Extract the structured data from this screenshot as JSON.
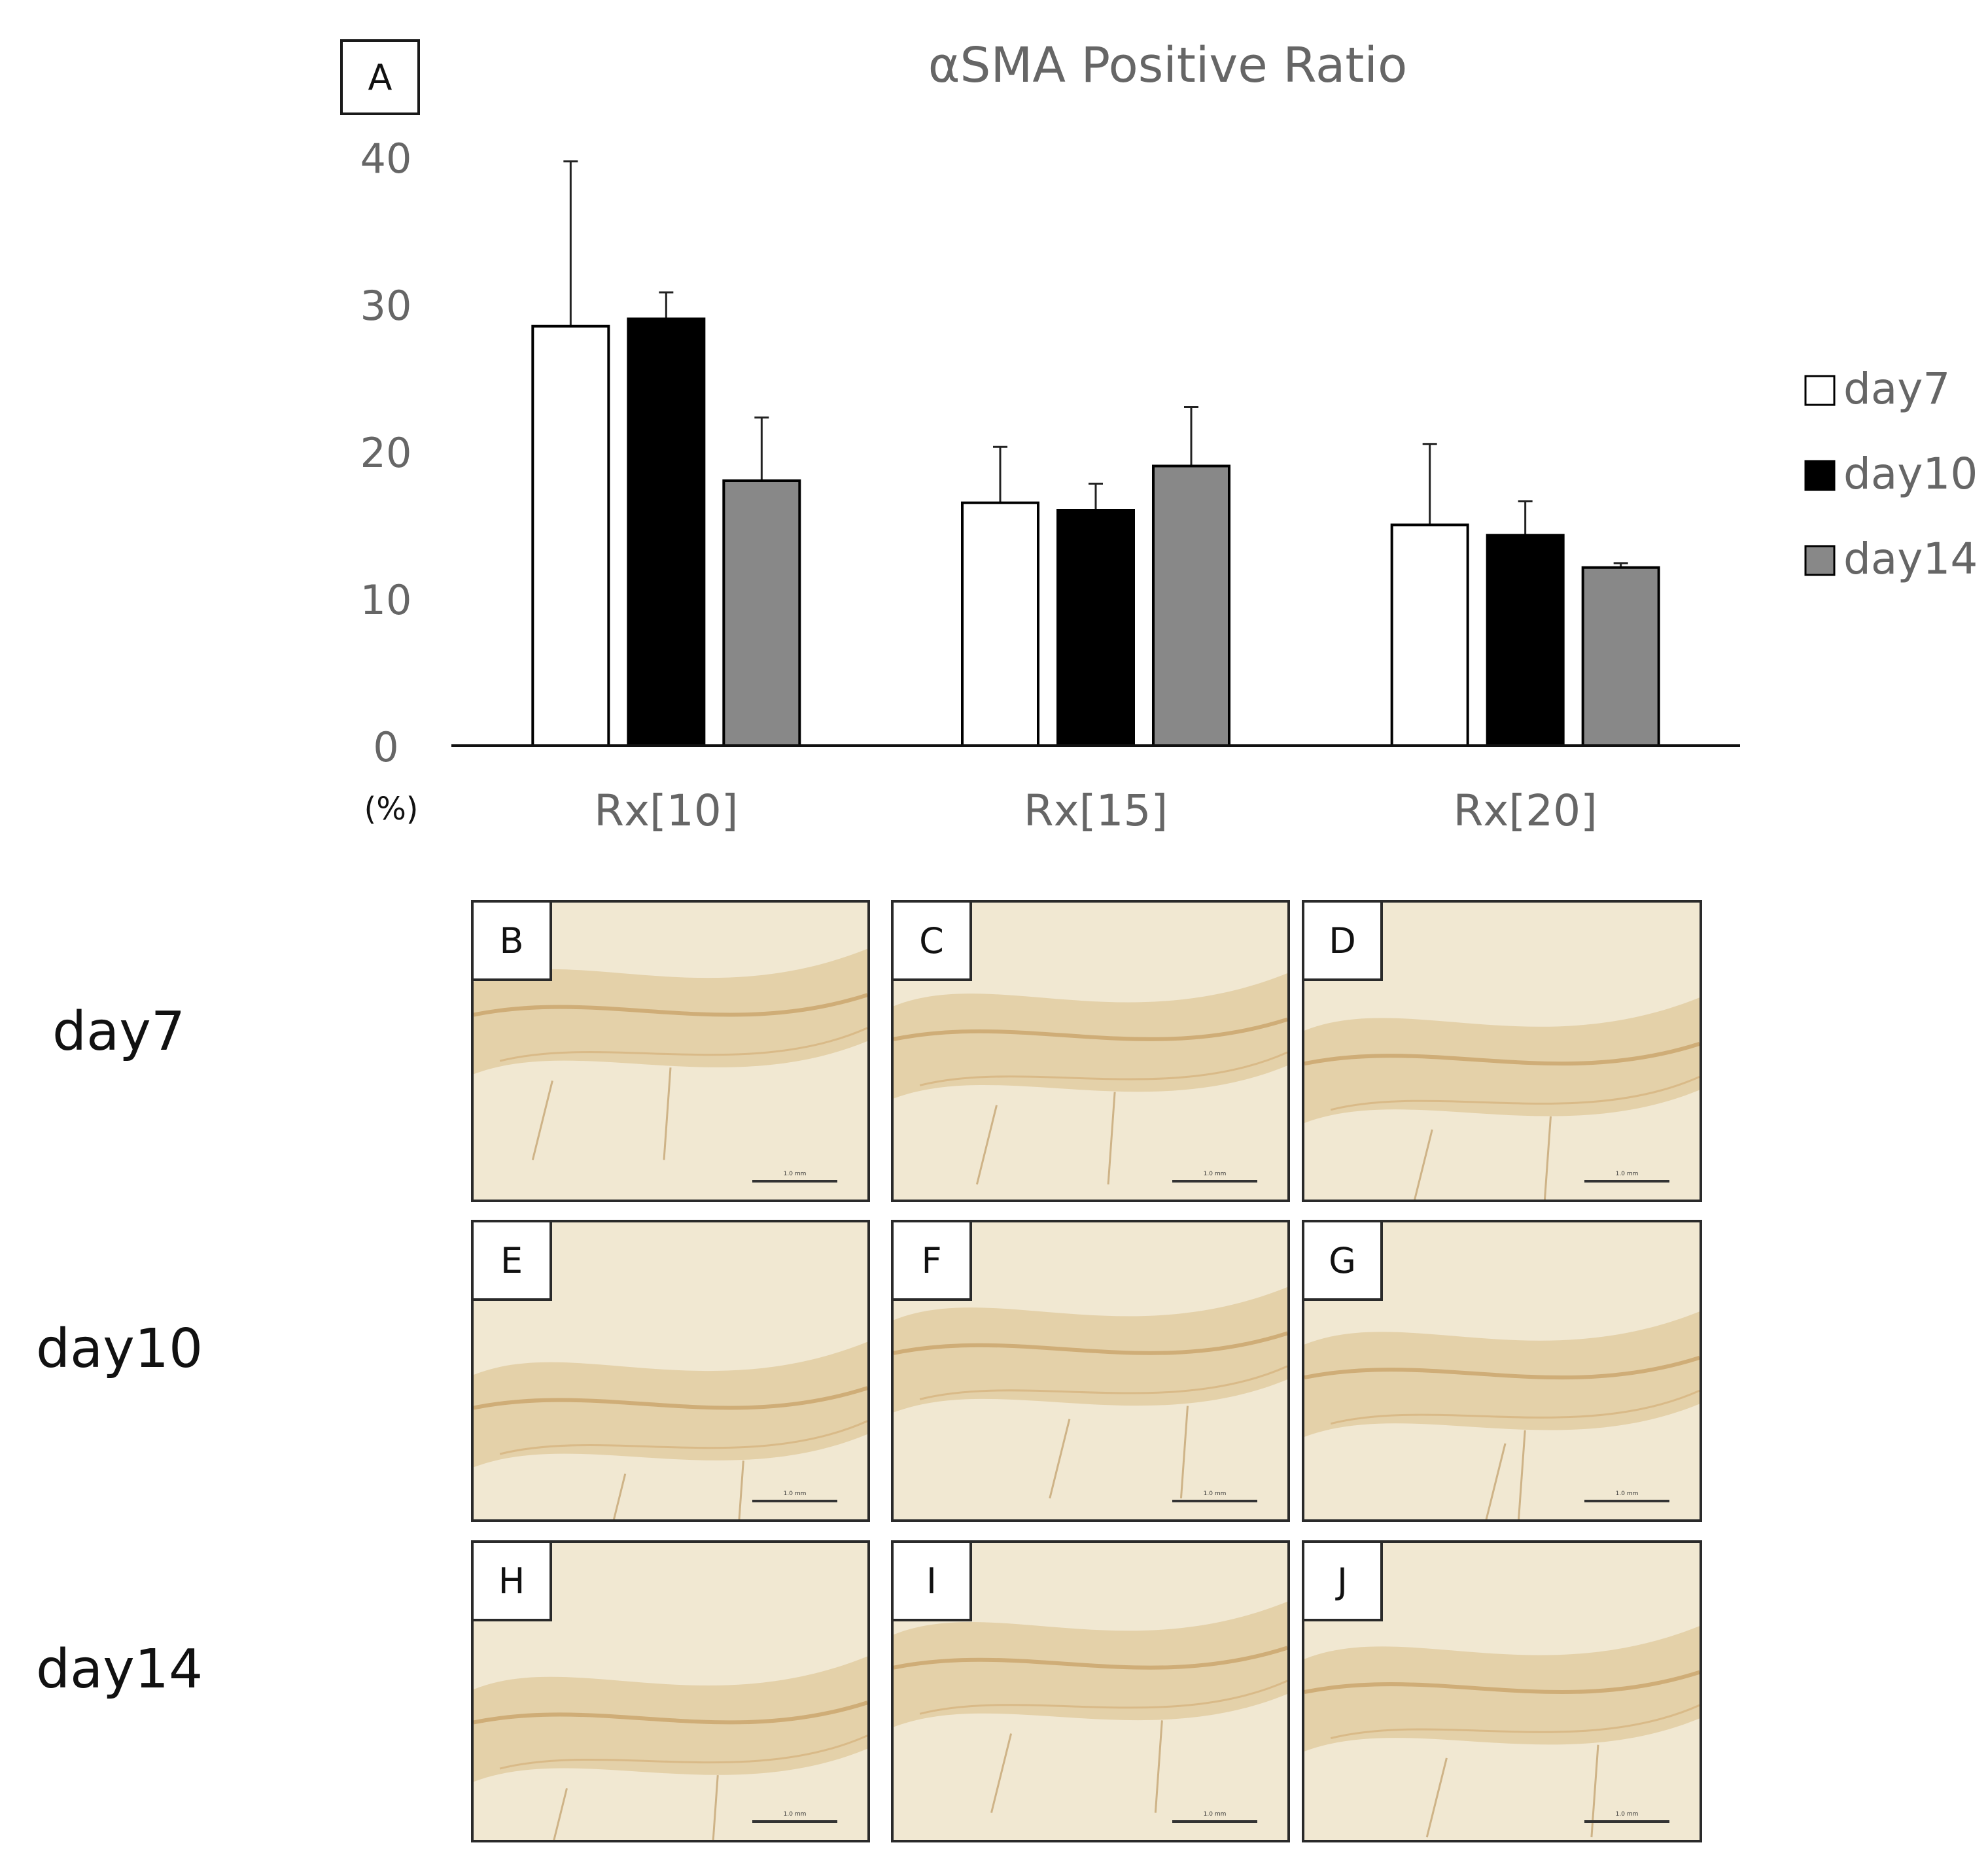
{
  "panel_a_label": "A",
  "chart_data": {
    "type": "bar",
    "title": "αSMA Positive Ratio",
    "ylabel": "(%)",
    "xlabel": "",
    "ylim": [
      0,
      40
    ],
    "yticks": [
      0,
      10,
      20,
      30,
      40
    ],
    "categories": [
      "Rx[10]",
      "Rx[15]",
      "Rx[20]"
    ],
    "series": [
      {
        "name": "day7",
        "color": "#ffffff",
        "values": [
          28.5,
          16.5,
          15.0
        ],
        "errors": [
          11.2,
          3.8,
          5.5
        ]
      },
      {
        "name": "day10",
        "color": "#000000",
        "values": [
          29.0,
          16.0,
          14.3
        ],
        "errors": [
          1.8,
          1.8,
          2.3
        ]
      },
      {
        "name": "day14",
        "color": "#888888",
        "values": [
          18.0,
          19.0,
          12.1
        ],
        "errors": [
          4.3,
          4.0,
          0.3
        ]
      }
    ],
    "legend_position": "right",
    "grid": false
  },
  "micrographs": {
    "rows": [
      "day7",
      "day10",
      "day14"
    ],
    "panels": [
      {
        "label": "B",
        "scale": "1.0 mm"
      },
      {
        "label": "C",
        "scale": "1.0 mm"
      },
      {
        "label": "D",
        "scale": "1.0 mm"
      },
      {
        "label": "E",
        "scale": "1.0 mm"
      },
      {
        "label": "F",
        "scale": "1.0 mm"
      },
      {
        "label": "G",
        "scale": "1.0 mm"
      },
      {
        "label": "H",
        "scale": "1.0 mm"
      },
      {
        "label": "I",
        "scale": "1.0 mm"
      },
      {
        "label": "J",
        "scale": "1.0 mm"
      }
    ]
  }
}
